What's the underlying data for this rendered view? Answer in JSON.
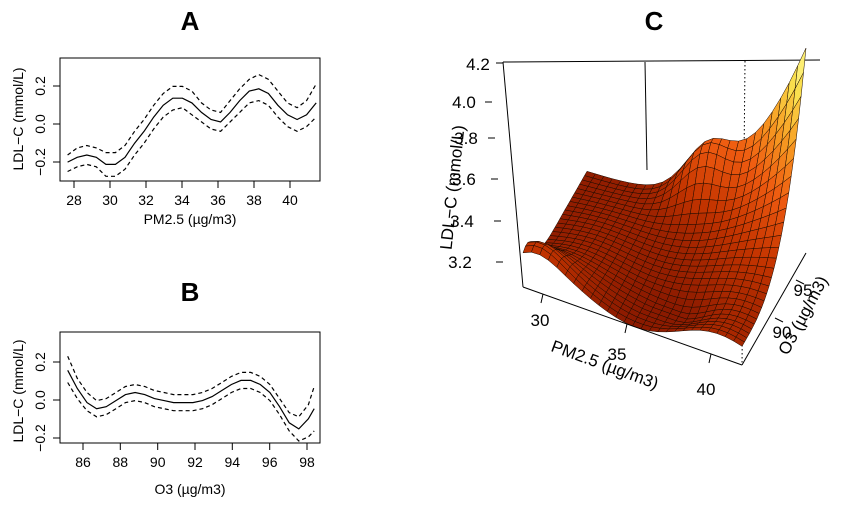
{
  "chart_data": [
    {
      "panel": "A",
      "type": "line",
      "title": "A",
      "xlabel": "PM2.5 (µg/m3)",
      "ylabel": "LDL−C (mmol/L)",
      "xlim": [
        27.6,
        41.2
      ],
      "ylim": [
        -0.22,
        0.3
      ],
      "xticks": [
        "28",
        "30",
        "32",
        "34",
        "36",
        "38",
        "40"
      ],
      "yticks": [
        "−0.2",
        "0.0",
        "0.2"
      ],
      "series": [
        {
          "name": "estimate",
          "style": "solid",
          "x": [
            28,
            28.5,
            29,
            29.5,
            30,
            30.5,
            31,
            31.5,
            32,
            32.5,
            33,
            33.5,
            34,
            34.5,
            35,
            35.5,
            36,
            36.5,
            37,
            37.5,
            38,
            38.5,
            39,
            39.5,
            40,
            40.5,
            41
          ],
          "values": [
            -0.14,
            -0.12,
            -0.11,
            -0.12,
            -0.15,
            -0.15,
            -0.12,
            -0.06,
            -0.01,
            0.05,
            0.1,
            0.13,
            0.13,
            0.11,
            0.07,
            0.04,
            0.03,
            0.07,
            0.12,
            0.16,
            0.17,
            0.15,
            0.1,
            0.06,
            0.04,
            0.06,
            0.11
          ]
        },
        {
          "name": "upper 95% CI",
          "style": "dashed",
          "x": [
            28,
            28.5,
            29,
            29.5,
            30,
            30.5,
            31,
            31.5,
            32,
            32.5,
            33,
            33.5,
            34,
            34.5,
            35,
            35.5,
            36,
            36.5,
            37,
            37.5,
            38,
            38.5,
            39,
            39.5,
            40,
            40.5,
            41
          ],
          "values": [
            -0.11,
            -0.08,
            -0.07,
            -0.08,
            -0.1,
            -0.1,
            -0.07,
            -0.01,
            0.04,
            0.1,
            0.15,
            0.18,
            0.18,
            0.16,
            0.11,
            0.08,
            0.07,
            0.12,
            0.17,
            0.21,
            0.23,
            0.21,
            0.16,
            0.11,
            0.09,
            0.12,
            0.19
          ]
        },
        {
          "name": "lower 95% CI",
          "style": "dashed",
          "x": [
            28,
            28.5,
            29,
            29.5,
            30,
            30.5,
            31,
            31.5,
            32,
            32.5,
            33,
            33.5,
            34,
            34.5,
            35,
            35.5,
            36,
            36.5,
            37,
            37.5,
            38,
            38.5,
            39,
            39.5,
            40,
            40.5,
            41
          ],
          "values": [
            -0.18,
            -0.16,
            -0.15,
            -0.16,
            -0.2,
            -0.2,
            -0.17,
            -0.11,
            -0.06,
            0.0,
            0.05,
            0.08,
            0.09,
            0.06,
            0.03,
            0.0,
            -0.01,
            0.03,
            0.07,
            0.11,
            0.12,
            0.1,
            0.05,
            0.01,
            -0.01,
            0.01,
            0.05
          ]
        }
      ]
    },
    {
      "panel": "B",
      "type": "line",
      "title": "B",
      "xlabel": "O3 (µg/m3)",
      "ylabel": "LDL−C (mmol/L)",
      "xlim": [
        85.1,
        98.6
      ],
      "ylim": [
        -0.22,
        0.33
      ],
      "xticks": [
        "86",
        "88",
        "90",
        "92",
        "94",
        "96",
        "98"
      ],
      "yticks": [
        "−0.2",
        "0.0",
        "0.2"
      ],
      "series": [
        {
          "name": "estimate",
          "style": "solid",
          "x": [
            85.5,
            86,
            86.5,
            87,
            87.5,
            88,
            88.5,
            89,
            89.5,
            90,
            90.5,
            91,
            91.5,
            92,
            92.5,
            93,
            93.5,
            94,
            94.5,
            95,
            95.5,
            96,
            96.5,
            97,
            97.5,
            98,
            98.3
          ],
          "values": [
            0.14,
            0.05,
            -0.02,
            -0.05,
            -0.04,
            -0.01,
            0.02,
            0.03,
            0.02,
            0.0,
            -0.01,
            -0.02,
            -0.02,
            -0.02,
            -0.01,
            0.01,
            0.04,
            0.07,
            0.09,
            0.09,
            0.07,
            0.03,
            -0.04,
            -0.12,
            -0.15,
            -0.1,
            -0.05
          ]
        },
        {
          "name": "upper 95% CI",
          "style": "dashed",
          "x": [
            85.5,
            86,
            86.5,
            87,
            87.5,
            88,
            88.5,
            89,
            89.5,
            90,
            90.5,
            91,
            91.5,
            92,
            92.5,
            93,
            93.5,
            94,
            94.5,
            95,
            95.5,
            96,
            96.5,
            97,
            97.5,
            98,
            98.3
          ],
          "values": [
            0.21,
            0.1,
            0.03,
            -0.01,
            0.0,
            0.03,
            0.06,
            0.07,
            0.06,
            0.04,
            0.03,
            0.02,
            0.02,
            0.02,
            0.03,
            0.05,
            0.08,
            0.11,
            0.13,
            0.13,
            0.11,
            0.07,
            0.0,
            -0.07,
            -0.09,
            -0.03,
            0.06
          ]
        },
        {
          "name": "lower 95% CI",
          "style": "dashed",
          "x": [
            85.5,
            86,
            86.5,
            87,
            87.5,
            88,
            88.5,
            89,
            89.5,
            90,
            90.5,
            91,
            91.5,
            92,
            92.5,
            93,
            93.5,
            94,
            94.5,
            95,
            95.5,
            96,
            96.5,
            97,
            97.5,
            98,
            98.3
          ],
          "values": [
            0.08,
            0.0,
            -0.06,
            -0.09,
            -0.08,
            -0.05,
            -0.02,
            -0.01,
            -0.02,
            -0.04,
            -0.05,
            -0.06,
            -0.06,
            -0.06,
            -0.05,
            -0.03,
            0.0,
            0.03,
            0.05,
            0.05,
            0.03,
            -0.01,
            -0.08,
            -0.16,
            -0.21,
            -0.19,
            -0.16
          ]
        }
      ]
    },
    {
      "panel": "C",
      "type": "surface",
      "title": "C",
      "xlabel": "PM2.5 (µg/m3)",
      "ylabel": "O3 (µg/m3)",
      "zlabel": "LDL−C (mmol/L)",
      "xlim": [
        28,
        41
      ],
      "ylim": [
        86,
        98
      ],
      "zlim": [
        3.1,
        4.2
      ],
      "xticks": [
        "30",
        "35",
        "40"
      ],
      "yticks": [
        "90",
        "95"
      ],
      "zticks": [
        "3.2",
        "3.4",
        "3.6",
        "3.8",
        "4.0",
        "4.2"
      ],
      "grid_size": 26,
      "colormap": [
        "#8b1a00",
        "#c43400",
        "#ee5a10",
        "#f79b22",
        "#fadd4a",
        "#ffff99"
      ]
    }
  ]
}
